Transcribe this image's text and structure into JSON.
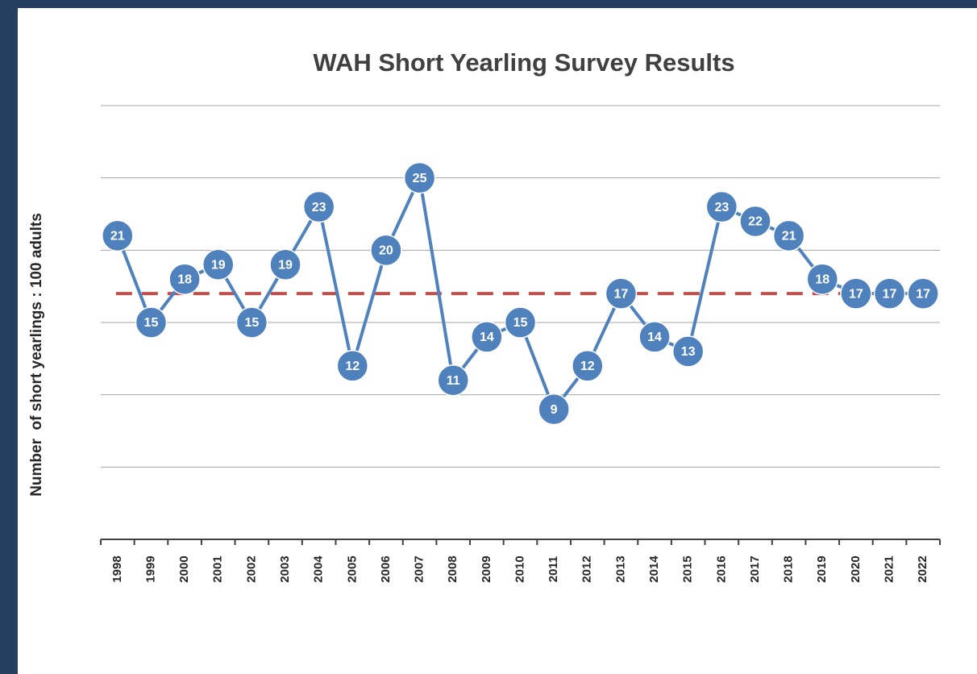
{
  "chart_data": {
    "type": "line",
    "title": "WAH Short Yearling Survey Results",
    "y_label": "Number  of short yearlings : 100 adults",
    "categories": [
      "1998",
      "1999",
      "2000",
      "2001",
      "2002",
      "2003",
      "2004",
      "2005",
      "2006",
      "2007",
      "2008",
      "2009",
      "2010",
      "2011",
      "2012",
      "2013",
      "2014",
      "2015",
      "2016",
      "2017",
      "2018",
      "2019",
      "2020",
      "2021",
      "2022"
    ],
    "series": [
      {
        "color": "#4f81bd",
        "values": [
          21,
          15,
          18,
          19,
          15,
          19,
          23,
          12,
          20,
          25,
          11,
          14,
          15,
          9,
          12,
          17,
          14,
          13,
          23,
          22,
          21,
          18,
          17,
          17,
          17
        ]
      }
    ],
    "average": 17,
    "average_color": "#c0504d",
    "ylim": [
      0,
      30
    ],
    "yticks": [
      0,
      5,
      10,
      15,
      20,
      25,
      30
    ],
    "grid": true
  }
}
